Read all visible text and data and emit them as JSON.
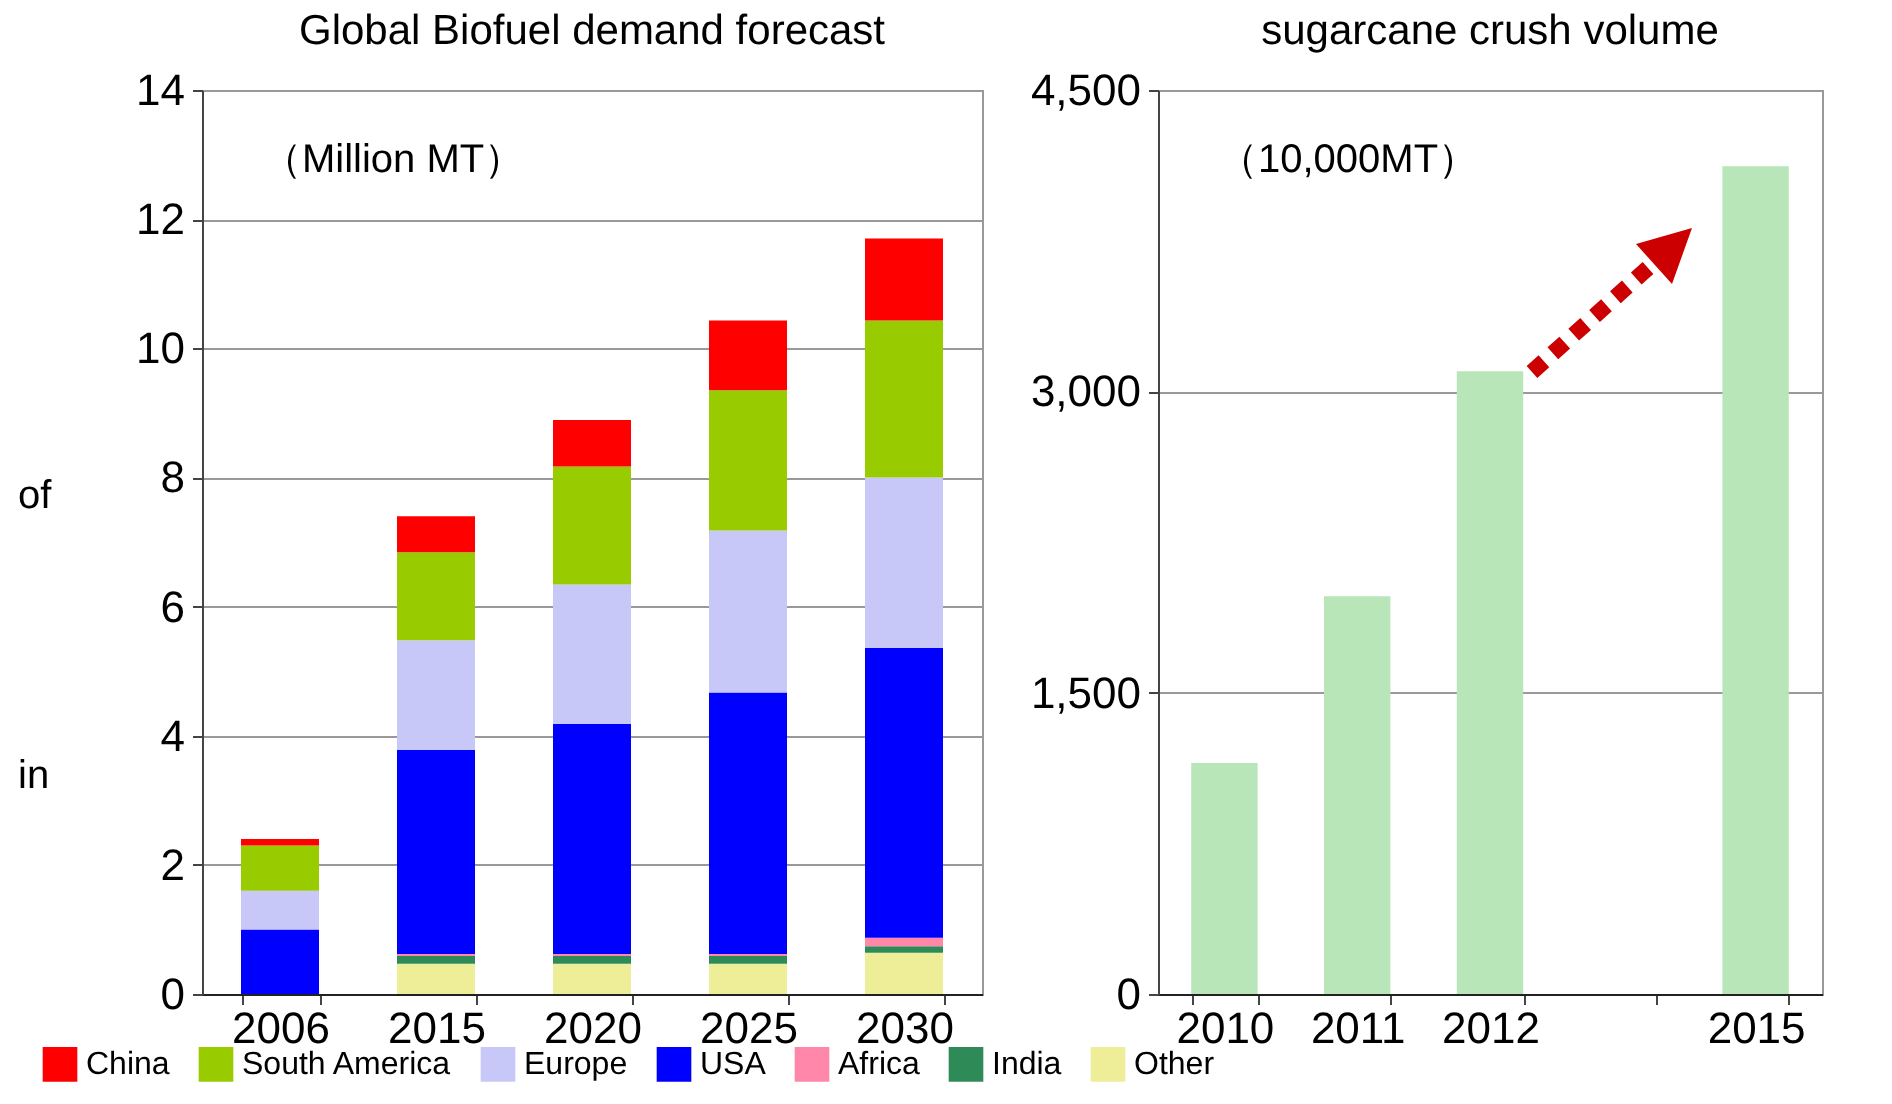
{
  "chart_data": [
    {
      "type": "bar",
      "title": "Global Biofuel demand forecast",
      "categories": [
        "2006",
        "2015",
        "2020",
        "2025",
        "2030"
      ],
      "stacked": true,
      "legend": "bottom",
      "grid": "y",
      "ylim": [
        0,
        14
      ],
      "yticks": [
        0,
        2,
        4,
        6,
        8,
        10,
        12,
        14
      ],
      "annotations": [
        "（Million MT）",
        "of",
        "in"
      ],
      "series": [
        {
          "name": "Other",
          "color": "#eeee99",
          "values": [
            0,
            0.47,
            0.47,
            0.47,
            0.64
          ]
        },
        {
          "name": "India",
          "color": "#2e8b57",
          "values": [
            0,
            0.12,
            0.12,
            0.12,
            0.1
          ]
        },
        {
          "name": "Africa",
          "color": "#ff88aa",
          "values": [
            0,
            0.03,
            0.03,
            0.03,
            0.13
          ]
        },
        {
          "name": "USA",
          "color": "#0000ff",
          "values": [
            1.0,
            3.16,
            3.56,
            4.05,
            4.49
          ]
        },
        {
          "name": "Europe",
          "color": "#c8c8f8",
          "values": [
            0.6,
            1.7,
            2.16,
            2.51,
            2.64
          ]
        },
        {
          "name": "South America",
          "color": "#99cc00",
          "values": [
            0.7,
            1.36,
            1.83,
            2.17,
            2.43
          ]
        },
        {
          "name": "China",
          "color": "#ff0000",
          "values": [
            0.1,
            0.56,
            0.72,
            1.08,
            1.27
          ]
        }
      ]
    },
    {
      "type": "bar",
      "title": "sugarcane crush volume",
      "categories": [
        "2010",
        "2011",
        "2012",
        null,
        "2015"
      ],
      "color": "#b8e6b8",
      "values": [
        1150,
        1980,
        3100,
        null,
        4120
      ],
      "grid": "y",
      "ylim": [
        0,
        4500
      ],
      "yticks": [
        0,
        {
          "value": 1500,
          "label": "1,500"
        },
        {
          "value": 3000,
          "label": "3,000"
        },
        {
          "value": 4500,
          "label": "4,500"
        }
      ],
      "annotations": [
        "（10,000MT）"
      ]
    }
  ]
}
